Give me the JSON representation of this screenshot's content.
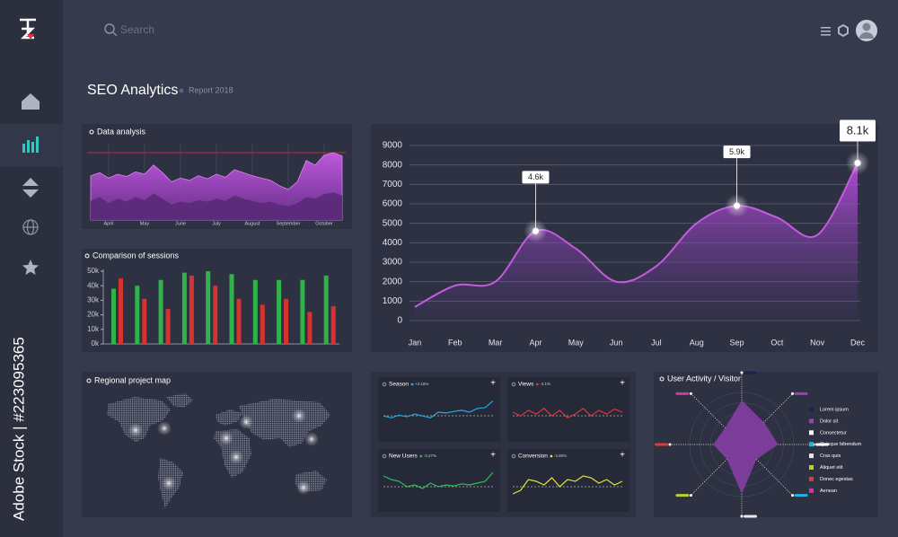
{
  "app": {
    "search_placeholder": "Search",
    "watermark": "Adobe Stock | #223095365"
  },
  "header": {
    "title": "SEO Analytics",
    "subtitle": "Report 2018"
  },
  "map": {
    "title": "Regional project map"
  },
  "chart_data": [
    {
      "type": "area",
      "title": "Data analysis",
      "x": [
        -0.5,
        -0.25,
        0,
        0.25,
        0.5,
        0.75,
        1,
        1.25,
        1.5,
        1.75,
        2,
        2.25,
        2.5,
        2.75,
        3,
        3.25,
        3.5,
        3.75,
        4,
        4.25,
        4.5,
        4.75,
        5,
        5.25,
        5.5,
        5.75,
        6,
        6.25,
        6.5
      ],
      "xlim": [
        -0.6,
        6.6
      ],
      "xticks": [
        {
          "value": 0,
          "label": "April"
        },
        {
          "value": 1,
          "label": "May"
        },
        {
          "value": 2,
          "label": "June"
        },
        {
          "value": 3,
          "label": "July"
        },
        {
          "value": 4,
          "label": "August"
        },
        {
          "value": 5,
          "label": "September"
        },
        {
          "value": 6,
          "label": "October"
        }
      ],
      "ylim": [
        0,
        100
      ],
      "series": [
        {
          "color": "#b24fd6",
          "values": [
            58,
            62,
            55,
            60,
            57,
            63,
            60,
            72,
            62,
            50,
            55,
            52,
            58,
            54,
            60,
            56,
            66,
            62,
            58,
            55,
            52,
            45,
            40,
            50,
            78,
            72,
            85,
            88,
            84
          ]
        },
        {
          "color": "#5a2a78",
          "values": [
            25,
            30,
            22,
            28,
            24,
            30,
            26,
            35,
            28,
            20,
            24,
            22,
            26,
            24,
            28,
            25,
            32,
            28,
            25,
            22,
            24,
            20,
            18,
            22,
            30,
            28,
            34,
            36,
            32
          ]
        }
      ]
    },
    {
      "type": "bar",
      "title": "Comparison of sessions",
      "categories": [
        null,
        null,
        null,
        null,
        null,
        null,
        null,
        null,
        null,
        null
      ],
      "ylim": [
        0,
        50000
      ],
      "yticks": [
        {
          "value": 0,
          "label": "0k"
        },
        {
          "value": 10000,
          "label": "10k"
        },
        {
          "value": 20000,
          "label": "20k"
        },
        {
          "value": 30000,
          "label": "30k"
        },
        {
          "value": 40000,
          "label": "40k"
        },
        {
          "value": 50000,
          "label": "50k"
        }
      ],
      "series": [
        {
          "color": "#2fb34a",
          "values": [
            38000,
            40000,
            44000,
            49000,
            50000,
            48000,
            44000,
            44000,
            44000,
            47000
          ]
        },
        {
          "color": "#d6322e",
          "values": [
            45000,
            31000,
            24000,
            47000,
            40000,
            31000,
            27000,
            31000,
            22000,
            26000
          ]
        }
      ]
    },
    {
      "type": "line",
      "categories": [
        "Jan",
        "Feb",
        "Mar",
        "Apr",
        "May",
        "Jun",
        "Jul",
        "Aug",
        "Sep",
        "Oct",
        "Nov",
        "Dec"
      ],
      "values": [
        700,
        1800,
        2000,
        4600,
        3700,
        2000,
        2800,
        5000,
        5900,
        5300,
        4400,
        8100
      ],
      "value_labels": [
        null,
        null,
        null,
        "4.6k",
        null,
        null,
        null,
        null,
        "5.9k",
        null,
        null,
        "8.1k"
      ],
      "ylim": [
        0,
        9000
      ],
      "yticks": [
        0,
        1000,
        2000,
        3000,
        4000,
        5000,
        6000,
        7000,
        8000,
        9000
      ],
      "color": "#c35be0",
      "grid": true
    },
    {
      "type": "sparkline",
      "title": "Season",
      "change": "+3.16%",
      "ylim": [
        0,
        100
      ],
      "color": "#2aa8e0",
      "values": [
        40,
        35,
        42,
        38,
        45,
        40,
        35,
        50,
        48,
        52,
        55,
        50,
        60,
        62,
        80
      ]
    },
    {
      "type": "sparkline",
      "title": "Views",
      "change": "-4.1%",
      "ylim": [
        0,
        100
      ],
      "color": "#e0353a",
      "values": [
        50,
        40,
        55,
        45,
        60,
        40,
        55,
        35,
        45,
        60,
        40,
        55,
        45,
        58,
        50
      ]
    },
    {
      "type": "sparkline",
      "title": "New Users",
      "change": "-3.27%",
      "ylim": [
        0,
        100
      ],
      "color": "#2fbf5a",
      "values": [
        70,
        60,
        55,
        40,
        45,
        35,
        50,
        40,
        45,
        42,
        48,
        45,
        50,
        55,
        80
      ]
    },
    {
      "type": "sparkline",
      "title": "Conversion",
      "change": "-3.80%",
      "ylim": [
        0,
        100
      ],
      "color": "#e6e03a",
      "values": [
        20,
        30,
        60,
        55,
        45,
        65,
        40,
        60,
        55,
        70,
        65,
        50,
        60,
        45,
        55
      ]
    },
    {
      "type": "radar",
      "title": "User Activity / Visitor",
      "categories": [
        "Lorem ipsum",
        "Dolor sit",
        "Consectetur",
        "Quisque bibendum",
        "Cras quis",
        "Aliquet elit",
        "Donec egestas",
        "Aenean"
      ],
      "colors": [
        "#1b2450",
        "#9c3fb5",
        "#ffffff",
        "#1fb4e6",
        "#e8e8e8",
        "#b5d334",
        "#e33a3a",
        "#d4379a"
      ],
      "ylim": [
        0,
        100
      ],
      "color": "#8a3fa8",
      "values": [
        85,
        60,
        70,
        40,
        95,
        40,
        55,
        45
      ]
    }
  ]
}
